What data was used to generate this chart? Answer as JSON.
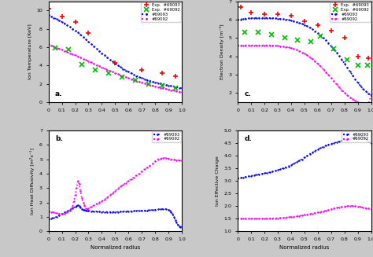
{
  "panel_a": {
    "label": "a.",
    "ylabel": "Ion Temperature [KeV]",
    "ylim": [
      0,
      11
    ],
    "exp93_x": [
      0.0,
      0.1,
      0.2,
      0.3,
      0.5,
      0.7,
      0.85,
      0.95
    ],
    "exp93_y": [
      10.2,
      9.3,
      8.7,
      7.5,
      4.3,
      3.5,
      3.2,
      2.8
    ],
    "exp92_x": [
      0.05,
      0.15,
      0.25,
      0.35,
      0.45,
      0.55,
      0.65,
      0.75,
      0.85,
      0.95
    ],
    "exp92_y": [
      5.9,
      5.7,
      4.1,
      3.5,
      3.2,
      2.7,
      2.4,
      2.0,
      1.8,
      1.5
    ],
    "sim93_x": [
      0.0,
      0.02,
      0.04,
      0.06,
      0.08,
      0.1,
      0.12,
      0.14,
      0.16,
      0.18,
      0.2,
      0.22,
      0.24,
      0.26,
      0.28,
      0.3,
      0.32,
      0.34,
      0.36,
      0.38,
      0.4,
      0.42,
      0.44,
      0.46,
      0.48,
      0.5,
      0.52,
      0.54,
      0.56,
      0.58,
      0.6,
      0.62,
      0.64,
      0.66,
      0.68,
      0.7,
      0.72,
      0.74,
      0.76,
      0.78,
      0.8,
      0.82,
      0.84,
      0.86,
      0.88,
      0.9,
      0.92,
      0.94,
      0.96,
      0.98,
      1.0
    ],
    "sim93_y": [
      9.5,
      9.35,
      9.2,
      9.05,
      8.9,
      8.75,
      8.6,
      8.4,
      8.2,
      8.0,
      7.8,
      7.6,
      7.35,
      7.1,
      6.85,
      6.6,
      6.35,
      6.1,
      5.85,
      5.6,
      5.35,
      5.1,
      4.87,
      4.64,
      4.42,
      4.2,
      4.0,
      3.82,
      3.64,
      3.46,
      3.3,
      3.15,
      3.0,
      2.87,
      2.74,
      2.62,
      2.52,
      2.42,
      2.33,
      2.24,
      2.16,
      2.09,
      2.02,
      1.95,
      1.88,
      1.82,
      1.76,
      1.7,
      1.64,
      1.58,
      1.52
    ],
    "sim92_x": [
      0.0,
      0.02,
      0.04,
      0.06,
      0.08,
      0.1,
      0.12,
      0.14,
      0.16,
      0.18,
      0.2,
      0.22,
      0.24,
      0.26,
      0.28,
      0.3,
      0.32,
      0.34,
      0.36,
      0.38,
      0.4,
      0.42,
      0.44,
      0.46,
      0.48,
      0.5,
      0.52,
      0.54,
      0.56,
      0.58,
      0.6,
      0.62,
      0.64,
      0.66,
      0.68,
      0.7,
      0.72,
      0.74,
      0.76,
      0.78,
      0.8,
      0.82,
      0.84,
      0.86,
      0.88,
      0.9,
      0.92,
      0.94,
      0.96,
      0.98,
      1.0
    ],
    "sim92_y": [
      6.3,
      6.18,
      6.06,
      5.94,
      5.82,
      5.7,
      5.58,
      5.46,
      5.34,
      5.22,
      5.1,
      4.98,
      4.85,
      4.72,
      4.59,
      4.46,
      4.33,
      4.2,
      4.07,
      3.94,
      3.81,
      3.68,
      3.55,
      3.42,
      3.3,
      3.18,
      3.06,
      2.95,
      2.84,
      2.73,
      2.62,
      2.52,
      2.42,
      2.32,
      2.22,
      2.13,
      2.04,
      1.96,
      1.88,
      1.8,
      1.72,
      1.65,
      1.58,
      1.51,
      1.44,
      1.37,
      1.31,
      1.25,
      1.2,
      1.15,
      1.1
    ]
  },
  "panel_b": {
    "label": "b.",
    "ylabel": "Ion Heat Diffusivity [m²s⁻¹]",
    "ylim": [
      0,
      7
    ],
    "xlabel": "Normalized radius",
    "sim93_x": [
      0.0,
      0.02,
      0.04,
      0.06,
      0.08,
      0.1,
      0.12,
      0.14,
      0.16,
      0.18,
      0.2,
      0.21,
      0.22,
      0.23,
      0.24,
      0.25,
      0.26,
      0.27,
      0.28,
      0.29,
      0.3,
      0.32,
      0.34,
      0.36,
      0.38,
      0.4,
      0.42,
      0.44,
      0.46,
      0.48,
      0.5,
      0.52,
      0.54,
      0.56,
      0.58,
      0.6,
      0.62,
      0.64,
      0.66,
      0.68,
      0.7,
      0.72,
      0.74,
      0.76,
      0.78,
      0.8,
      0.82,
      0.84,
      0.86,
      0.88,
      0.9,
      0.91,
      0.92,
      0.93,
      0.94,
      0.95,
      0.96,
      0.97,
      0.98,
      0.99,
      1.0
    ],
    "sim93_y": [
      0.85,
      0.9,
      0.95,
      1.0,
      1.1,
      1.2,
      1.3,
      1.4,
      1.5,
      1.6,
      1.7,
      1.75,
      1.8,
      1.75,
      1.65,
      1.55,
      1.5,
      1.48,
      1.46,
      1.44,
      1.42,
      1.4,
      1.38,
      1.37,
      1.36,
      1.35,
      1.35,
      1.35,
      1.35,
      1.35,
      1.35,
      1.35,
      1.36,
      1.37,
      1.38,
      1.39,
      1.4,
      1.41,
      1.42,
      1.43,
      1.44,
      1.45,
      1.46,
      1.47,
      1.48,
      1.5,
      1.52,
      1.54,
      1.55,
      1.54,
      1.5,
      1.45,
      1.35,
      1.2,
      1.0,
      0.8,
      0.6,
      0.45,
      0.35,
      0.3,
      0.35
    ],
    "sim92_x": [
      0.0,
      0.02,
      0.04,
      0.06,
      0.08,
      0.1,
      0.12,
      0.14,
      0.16,
      0.18,
      0.19,
      0.2,
      0.21,
      0.22,
      0.23,
      0.24,
      0.25,
      0.26,
      0.27,
      0.28,
      0.29,
      0.3,
      0.32,
      0.34,
      0.36,
      0.38,
      0.4,
      0.42,
      0.44,
      0.46,
      0.48,
      0.5,
      0.52,
      0.54,
      0.56,
      0.58,
      0.6,
      0.62,
      0.64,
      0.66,
      0.68,
      0.7,
      0.72,
      0.74,
      0.76,
      0.78,
      0.8,
      0.82,
      0.84,
      0.86,
      0.88,
      0.9,
      0.92,
      0.94,
      0.96,
      0.98,
      1.0
    ],
    "sim92_y": [
      1.4,
      1.35,
      1.3,
      1.25,
      1.22,
      1.2,
      1.22,
      1.3,
      1.45,
      1.7,
      2.1,
      2.5,
      3.0,
      3.5,
      3.3,
      2.8,
      2.3,
      2.0,
      1.8,
      1.6,
      1.55,
      1.6,
      1.7,
      1.8,
      1.9,
      2.0,
      2.1,
      2.2,
      2.35,
      2.5,
      2.65,
      2.8,
      2.95,
      3.1,
      3.22,
      3.35,
      3.5,
      3.62,
      3.75,
      3.88,
      4.0,
      4.15,
      4.3,
      4.42,
      4.55,
      4.68,
      4.85,
      5.0,
      5.05,
      5.08,
      5.1,
      5.05,
      5.0,
      4.97,
      4.95,
      4.93,
      4.9
    ]
  },
  "panel_c": {
    "label": "c.",
    "ylabel": "Electron Density [m-3]",
    "ylim": [
      1.5,
      7
    ],
    "exp93_x": [
      0.02,
      0.1,
      0.2,
      0.3,
      0.4,
      0.5,
      0.6,
      0.7,
      0.8,
      0.9,
      0.98
    ],
    "exp93_y": [
      6.7,
      6.4,
      6.3,
      6.3,
      6.2,
      5.9,
      5.7,
      5.4,
      5.0,
      4.0,
      3.9
    ],
    "exp92_x": [
      0.05,
      0.15,
      0.25,
      0.35,
      0.45,
      0.55,
      0.62,
      0.72,
      0.82,
      0.9,
      0.97
    ],
    "exp92_y": [
      5.3,
      5.3,
      5.2,
      5.0,
      4.9,
      4.8,
      5.1,
      4.4,
      3.8,
      3.5,
      3.5
    ],
    "sim93_x": [
      0.0,
      0.02,
      0.04,
      0.06,
      0.08,
      0.1,
      0.12,
      0.14,
      0.16,
      0.18,
      0.2,
      0.22,
      0.24,
      0.26,
      0.28,
      0.3,
      0.32,
      0.34,
      0.36,
      0.38,
      0.4,
      0.42,
      0.44,
      0.46,
      0.48,
      0.5,
      0.52,
      0.54,
      0.56,
      0.58,
      0.6,
      0.62,
      0.64,
      0.66,
      0.68,
      0.7,
      0.72,
      0.74,
      0.76,
      0.78,
      0.8,
      0.82,
      0.84,
      0.86,
      0.88,
      0.9,
      0.92,
      0.94,
      0.96,
      0.98,
      1.0
    ],
    "sim93_y": [
      6.0,
      6.02,
      6.04,
      6.06,
      6.07,
      6.08,
      6.09,
      6.1,
      6.1,
      6.1,
      6.1,
      6.1,
      6.09,
      6.08,
      6.07,
      6.06,
      6.05,
      6.03,
      6.01,
      5.98,
      5.95,
      5.91,
      5.87,
      5.82,
      5.77,
      5.71,
      5.64,
      5.56,
      5.47,
      5.37,
      5.26,
      5.14,
      5.01,
      4.87,
      4.72,
      4.56,
      4.39,
      4.21,
      4.02,
      3.82,
      3.61,
      3.4,
      3.18,
      2.97,
      2.76,
      2.56,
      2.38,
      2.22,
      2.08,
      1.96,
      1.9
    ],
    "sim92_x": [
      0.0,
      0.02,
      0.04,
      0.06,
      0.08,
      0.1,
      0.12,
      0.14,
      0.16,
      0.18,
      0.2,
      0.22,
      0.24,
      0.26,
      0.28,
      0.3,
      0.32,
      0.34,
      0.36,
      0.38,
      0.4,
      0.42,
      0.44,
      0.46,
      0.48,
      0.5,
      0.52,
      0.54,
      0.56,
      0.58,
      0.6,
      0.62,
      0.64,
      0.66,
      0.68,
      0.7,
      0.72,
      0.74,
      0.76,
      0.78,
      0.8,
      0.82,
      0.84,
      0.86,
      0.88,
      0.9,
      0.92,
      0.94,
      0.96,
      0.98,
      1.0
    ],
    "sim92_y": [
      4.6,
      4.6,
      4.6,
      4.6,
      4.6,
      4.6,
      4.6,
      4.6,
      4.6,
      4.6,
      4.6,
      4.6,
      4.6,
      4.59,
      4.58,
      4.57,
      4.55,
      4.53,
      4.51,
      4.48,
      4.44,
      4.4,
      4.35,
      4.29,
      4.22,
      4.14,
      4.05,
      3.95,
      3.84,
      3.72,
      3.59,
      3.45,
      3.3,
      3.14,
      2.98,
      2.81,
      2.64,
      2.47,
      2.31,
      2.16,
      2.02,
      1.89,
      1.77,
      1.67,
      1.58,
      1.51,
      1.46,
      1.42,
      1.4,
      1.39,
      1.9
    ]
  },
  "panel_d": {
    "label": "d.",
    "ylabel": "Ion Effective Charge",
    "ylim": [
      1,
      5
    ],
    "xlabel": "Normalized radius",
    "sim93_x": [
      0.0,
      0.02,
      0.04,
      0.06,
      0.08,
      0.1,
      0.12,
      0.14,
      0.16,
      0.18,
      0.2,
      0.22,
      0.24,
      0.26,
      0.28,
      0.3,
      0.32,
      0.34,
      0.36,
      0.38,
      0.4,
      0.42,
      0.44,
      0.46,
      0.48,
      0.5,
      0.52,
      0.54,
      0.56,
      0.58,
      0.6,
      0.62,
      0.64,
      0.66,
      0.68,
      0.7,
      0.72,
      0.74,
      0.76,
      0.78,
      0.8,
      0.82,
      0.84,
      0.86,
      0.88,
      0.9,
      0.92,
      0.94,
      0.96,
      0.98,
      1.0
    ],
    "sim93_y": [
      3.1,
      3.12,
      3.14,
      3.16,
      3.18,
      3.2,
      3.22,
      3.24,
      3.26,
      3.28,
      3.3,
      3.32,
      3.34,
      3.37,
      3.4,
      3.43,
      3.46,
      3.5,
      3.54,
      3.58,
      3.63,
      3.68,
      3.74,
      3.8,
      3.86,
      3.93,
      4.0,
      4.07,
      4.13,
      4.19,
      4.25,
      4.3,
      4.35,
      4.4,
      4.44,
      4.47,
      4.5,
      4.53,
      4.56,
      4.59,
      4.62,
      4.65,
      4.68,
      4.72,
      4.76,
      4.8,
      4.8,
      4.75,
      4.65,
      4.55,
      4.5
    ],
    "sim92_x": [
      0.0,
      0.02,
      0.04,
      0.06,
      0.08,
      0.1,
      0.12,
      0.14,
      0.16,
      0.18,
      0.2,
      0.22,
      0.24,
      0.26,
      0.28,
      0.3,
      0.32,
      0.34,
      0.36,
      0.38,
      0.4,
      0.42,
      0.44,
      0.46,
      0.48,
      0.5,
      0.52,
      0.54,
      0.56,
      0.58,
      0.6,
      0.62,
      0.64,
      0.66,
      0.68,
      0.7,
      0.72,
      0.74,
      0.76,
      0.78,
      0.8,
      0.82,
      0.84,
      0.86,
      0.88,
      0.9,
      0.92,
      0.94,
      0.96,
      0.98,
      1.0
    ],
    "sim92_y": [
      1.5,
      1.5,
      1.5,
      1.5,
      1.5,
      1.5,
      1.5,
      1.5,
      1.5,
      1.5,
      1.5,
      1.5,
      1.51,
      1.51,
      1.52,
      1.52,
      1.53,
      1.54,
      1.55,
      1.56,
      1.57,
      1.58,
      1.6,
      1.61,
      1.63,
      1.65,
      1.67,
      1.69,
      1.71,
      1.73,
      1.75,
      1.77,
      1.79,
      1.82,
      1.84,
      1.87,
      1.9,
      1.93,
      1.95,
      1.97,
      1.99,
      2.0,
      2.01,
      2.01,
      2.0,
      1.99,
      1.97,
      1.94,
      1.92,
      1.9,
      1.88
    ]
  },
  "color_red": "#ff0000",
  "color_green": "#00bb00",
  "color_blue": "#0000ff",
  "color_magenta": "#ff00ff",
  "bg_color": "#c8c8c8",
  "plot_bg": "#ffffff",
  "legend_a": [
    "Exp.  #69093",
    "Exp.  #69092",
    "#69093",
    "#69092"
  ],
  "legend_b": [
    "#69093",
    "#69092"
  ],
  "legend_c": [
    "Exp.  #69093",
    "Exp.  #69092",
    "#69093",
    "#69092"
  ],
  "legend_d": [
    "#69093",
    "#69092"
  ]
}
